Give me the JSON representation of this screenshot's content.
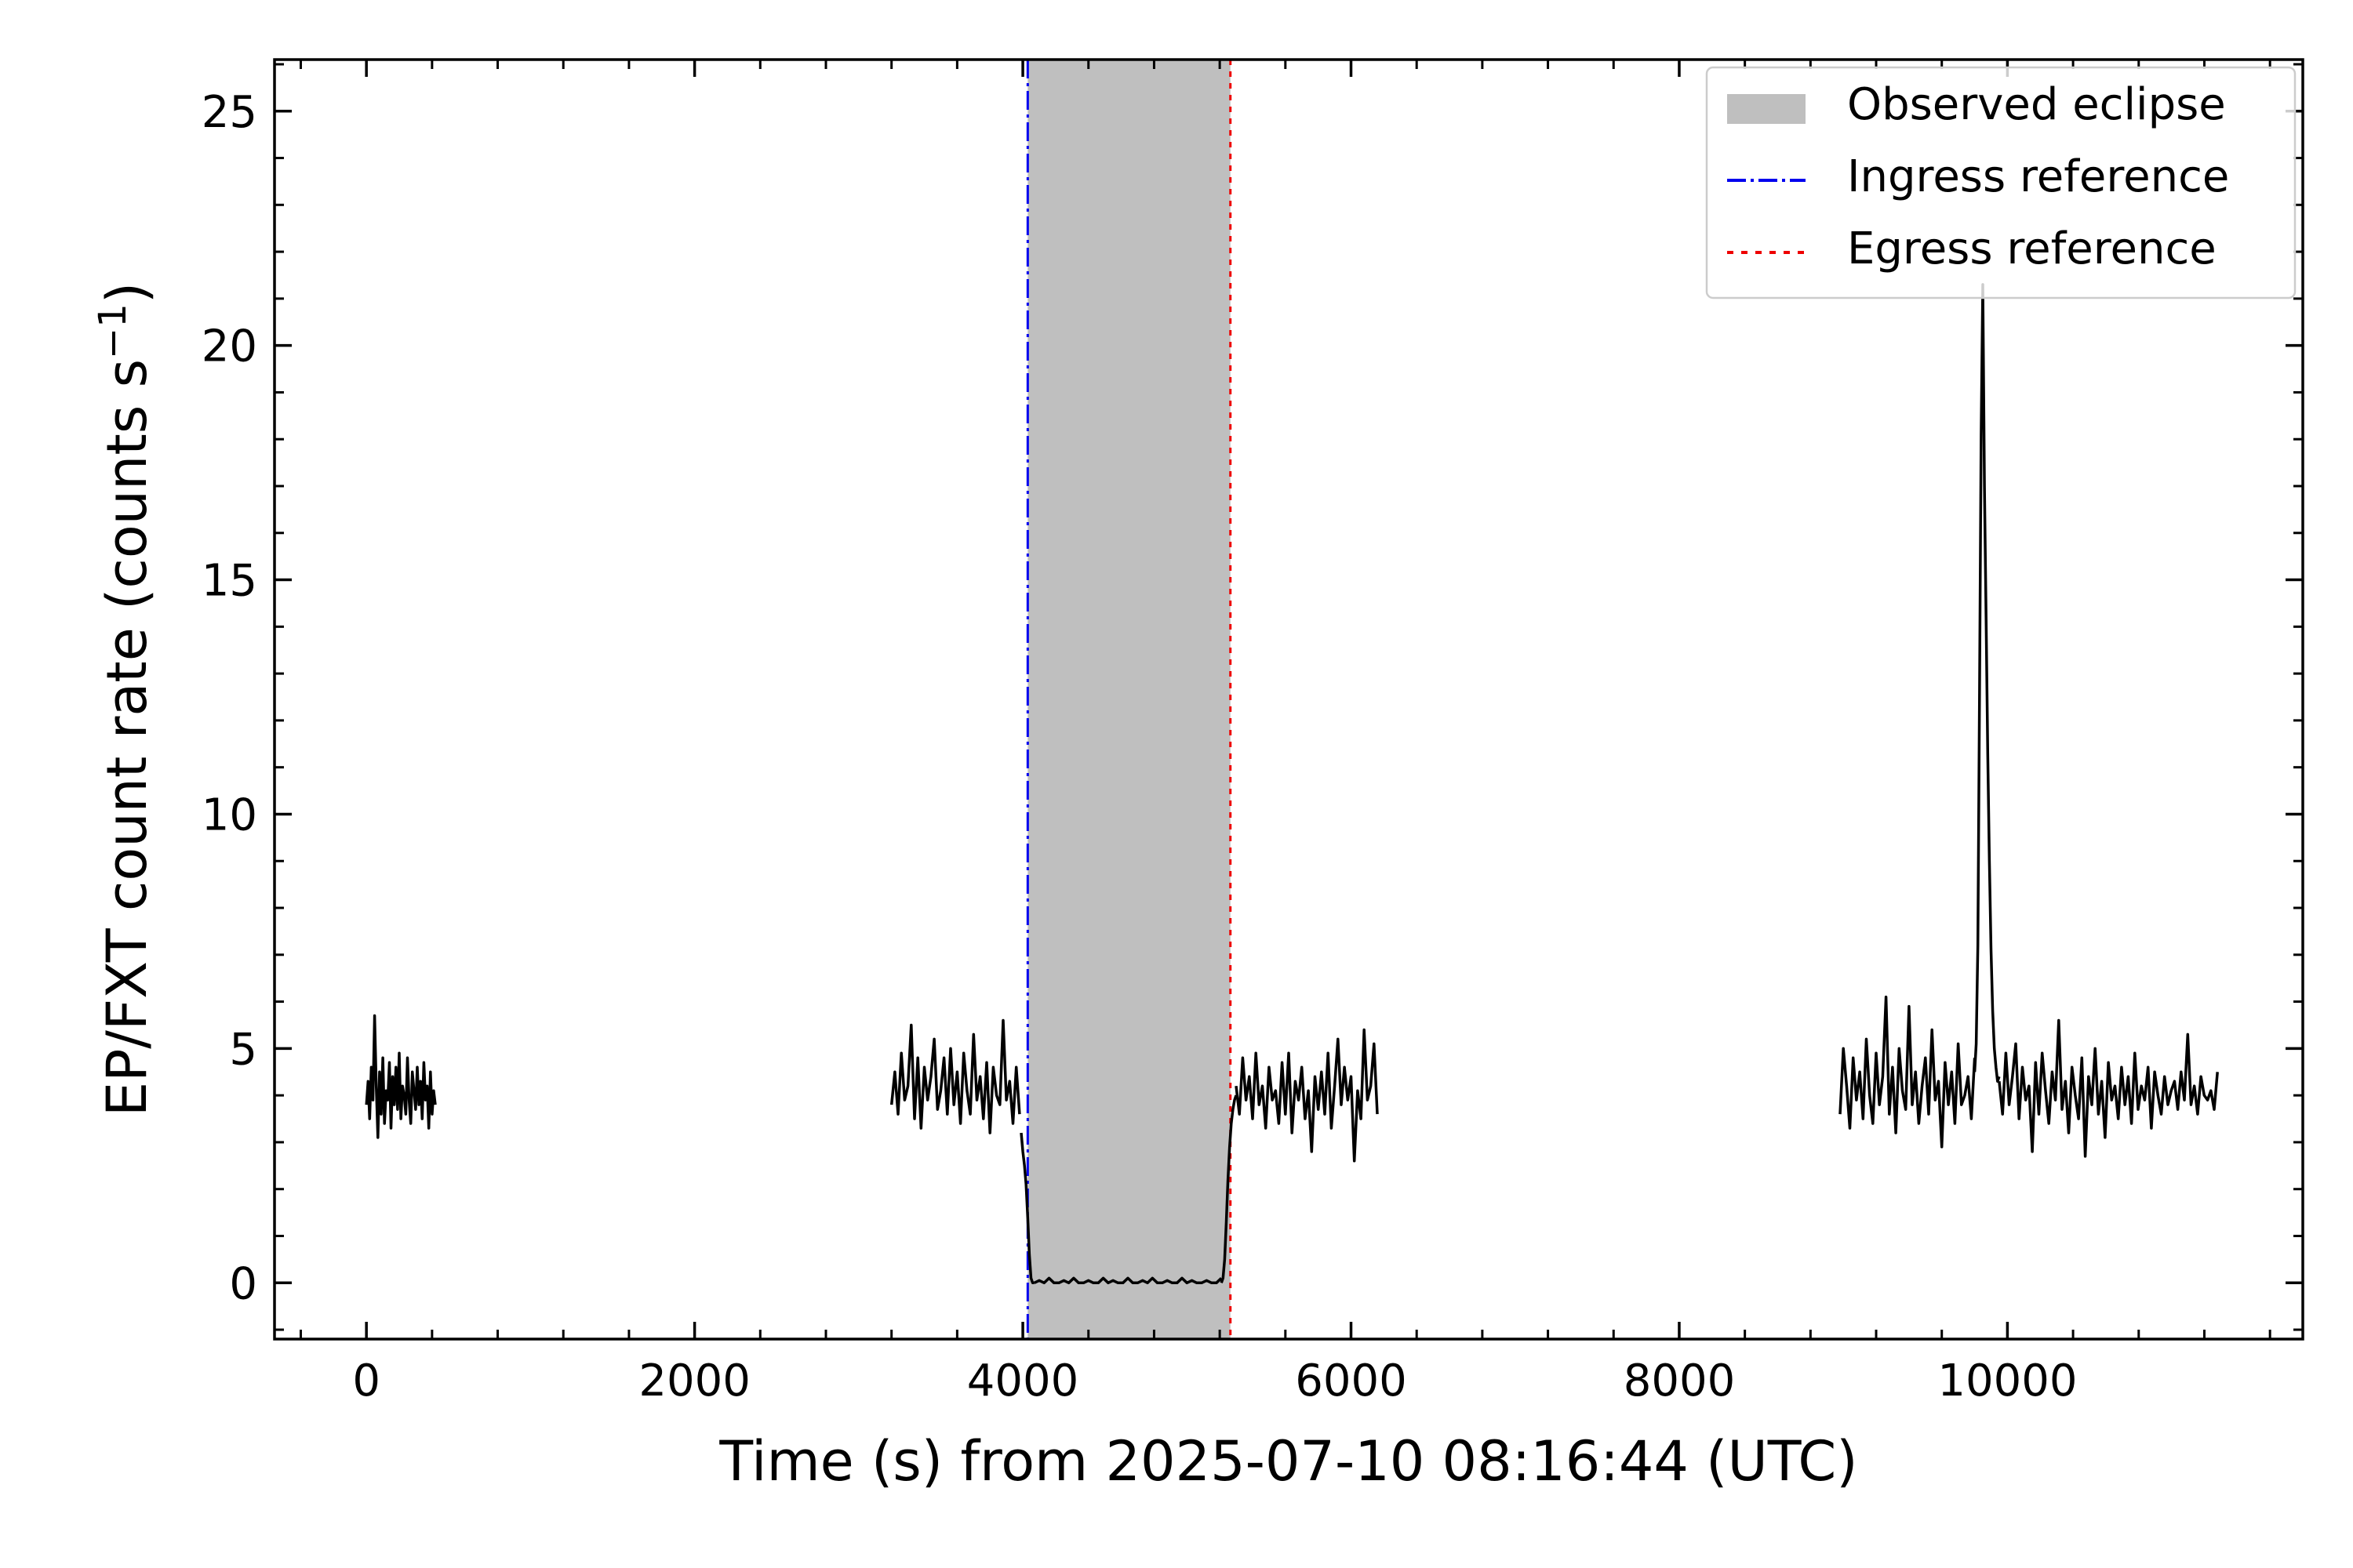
{
  "chart_data": {
    "type": "line",
    "xlabel": "Time (s) from 2025-07-10 08:16:44 (UTC)",
    "ylabel_main": "EP/FXT count rate (counts s",
    "ylabel_sup": "−1",
    "ylabel_close": ")",
    "xlim": [
      -560,
      11800
    ],
    "ylim": [
      -1.2,
      26.1
    ],
    "x_ticks": [
      0,
      2000,
      4000,
      6000,
      8000,
      10000
    ],
    "x_tick_labels": [
      "0",
      "2000",
      "4000",
      "6000",
      "8000",
      "10000"
    ],
    "y_ticks": [
      0,
      5,
      10,
      15,
      20,
      25
    ],
    "y_tick_labels": [
      "0",
      "5",
      "10",
      "15",
      "20",
      "25"
    ],
    "x_minor_step": 400,
    "y_minor_step": 1,
    "grid": false,
    "legend_position": "top-right",
    "eclipse": {
      "x_start": 4030,
      "x_end": 5265,
      "color": "#bfbfbf"
    },
    "ingress": {
      "x": 4030,
      "color": "#0000ee"
    },
    "egress": {
      "x": 5265,
      "color": "#ee0000"
    },
    "legend": [
      {
        "label": "Observed eclipse",
        "kind": "patch",
        "color": "#bfbfbf"
      },
      {
        "label": "Ingress reference",
        "kind": "dashdot",
        "color": "#0000ee"
      },
      {
        "label": "Egress reference",
        "kind": "dotted",
        "color": "#ee0000"
      }
    ],
    "series": [
      {
        "color": "#000000",
        "segments": [
          {
            "x_start": 0,
            "x_end": 420,
            "step": 10,
            "y": [
              3.8,
              4.3,
              3.5,
              4.6,
              3.9,
              5.7,
              4.2,
              3.1,
              4.5,
              3.6,
              4.8,
              3.4,
              4.1,
              3.9,
              4.7,
              3.3,
              4.4,
              3.8,
              4.6,
              3.7,
              4.9,
              3.5,
              4.2,
              4.0,
              3.6,
              4.8,
              3.9,
              3.4,
              4.5,
              4.1,
              3.7,
              4.6,
              3.8,
              4.3,
              3.5,
              4.7,
              3.9,
              4.2,
              3.3,
              4.5,
              3.6,
              4.1,
              3.8
            ]
          },
          {
            "x_start": 3200,
            "x_end": 3980,
            "step": 20,
            "y": [
              3.8,
              4.5,
              3.6,
              4.9,
              3.9,
              4.2,
              5.5,
              3.5,
              4.8,
              3.3,
              4.6,
              3.9,
              4.4,
              5.2,
              3.7,
              4.1,
              4.8,
              3.6,
              5.0,
              3.8,
              4.5,
              3.4,
              4.9,
              4.1,
              3.6,
              5.3,
              3.9,
              4.4,
              3.5,
              4.7,
              3.2,
              4.6,
              4.0,
              3.8,
              5.6,
              3.9,
              4.3,
              3.4,
              4.6,
              3.6
            ]
          },
          {
            "x_start": 3990,
            "x_end": 4070,
            "step": 10,
            "y": [
              3.2,
              2.8,
              2.5,
              2.1,
              1.4,
              0.6,
              0.1,
              0.0,
              0.0
            ]
          },
          {
            "x_start": 4070,
            "x_end": 5210,
            "step": 30,
            "y": [
              0.0,
              0.05,
              0.0,
              0.1,
              0.0,
              0.0,
              0.05,
              0.0,
              0.1,
              0.0,
              0.0,
              0.05,
              0.0,
              0.0,
              0.1,
              0.0,
              0.05,
              0.0,
              0.0,
              0.1,
              0.0,
              0.0,
              0.05,
              0.0,
              0.1,
              0.0,
              0.0,
              0.05,
              0.0,
              0.0,
              0.1,
              0.0,
              0.05,
              0.0,
              0.0,
              0.05,
              0.0,
              0.0,
              0.1
            ]
          },
          {
            "x_start": 5210,
            "x_end": 5300,
            "step": 10,
            "y": [
              0.0,
              0.1,
              0.5,
              1.3,
              2.2,
              2.9,
              3.4,
              3.7,
              3.9,
              4.0
            ]
          },
          {
            "x_start": 5300,
            "x_end": 6160,
            "step": 20,
            "y": [
              4.2,
              3.6,
              4.8,
              3.9,
              4.4,
              3.5,
              4.9,
              3.8,
              4.2,
              3.3,
              4.6,
              3.9,
              4.1,
              3.4,
              4.7,
              3.6,
              4.9,
              3.2,
              4.3,
              3.9,
              4.6,
              3.5,
              4.1,
              2.8,
              4.4,
              3.7,
              4.5,
              3.6,
              4.9,
              3.3,
              4.2,
              5.2,
              3.8,
              4.6,
              3.9,
              4.4,
              2.6,
              4.1,
              3.5,
              5.4,
              3.9,
              4.2,
              5.1,
              3.6
            ]
          },
          {
            "x_start": 8980,
            "x_end": 9800,
            "step": 20,
            "y": [
              3.6,
              5.0,
              4.2,
              3.3,
              4.8,
              3.9,
              4.5,
              3.5,
              5.2,
              4.0,
              3.4,
              4.9,
              3.8,
              4.4,
              6.1,
              3.6,
              4.6,
              3.2,
              5.0,
              4.1,
              3.7,
              5.9,
              3.8,
              4.5,
              3.4,
              4.2,
              4.8,
              3.6,
              5.4,
              3.9,
              4.3,
              2.9,
              4.7,
              3.8,
              4.5,
              3.4,
              5.1,
              3.8,
              4.0,
              4.4,
              3.5,
              4.8
            ]
          },
          {
            "x_start": 9800,
            "x_end": 9950,
            "step": 10,
            "y": [
              4.5,
              5.1,
              7.2,
              12.5,
              18.1,
              21.3,
              17.0,
              14.2,
              11.3,
              9.0,
              7.1,
              5.8,
              5.0,
              4.6,
              4.3,
              4.4
            ]
          },
          {
            "x_start": 9950,
            "x_end": 11280,
            "step": 20,
            "y": [
              4.3,
              3.6,
              4.9,
              3.8,
              4.4,
              5.1,
              3.5,
              4.6,
              3.9,
              4.2,
              2.8,
              4.7,
              3.6,
              4.9,
              4.1,
              3.4,
              4.5,
              3.9,
              5.6,
              3.7,
              4.3,
              3.2,
              4.6,
              4.0,
              3.5,
              4.8,
              2.7,
              4.4,
              3.8,
              5.0,
              3.6,
              4.3,
              3.1,
              4.7,
              3.9,
              4.2,
              3.5,
              4.6,
              3.8,
              4.4,
              3.4,
              4.9,
              3.7,
              4.2,
              3.9,
              4.6,
              3.3,
              4.5,
              4.0,
              3.6,
              4.4,
              3.8,
              4.1,
              4.3,
              3.7,
              4.5,
              3.9,
              5.3,
              3.8,
              4.2,
              3.6,
              4.4,
              4.0,
              3.9,
              4.1,
              3.7,
              4.5
            ]
          }
        ]
      }
    ]
  }
}
